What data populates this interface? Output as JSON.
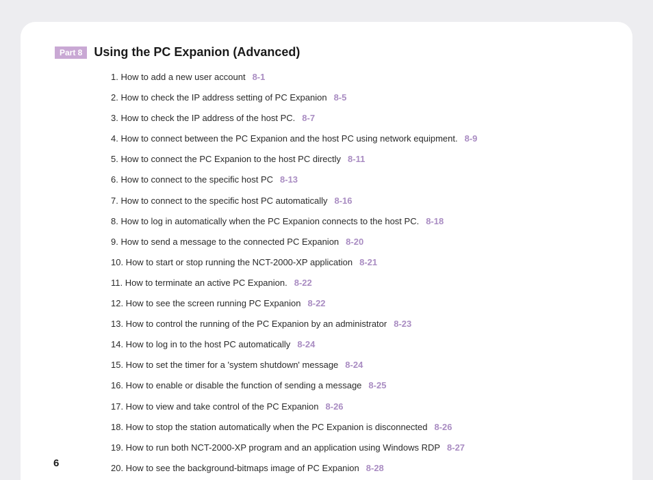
{
  "part_badge": "Part 8",
  "section_title": "Using the PC Expanion (Advanced)",
  "page_number": "6",
  "colors": {
    "page_bg": "#ffffff",
    "body_bg": "#ededf0",
    "badge_bg": "#c9a8d4",
    "badge_text": "#ffffff",
    "title_text": "#1a1a1a",
    "item_text": "#2a2a2a",
    "ref_text": "#a98cc2"
  },
  "toc": [
    {
      "n": "1",
      "text": "How to add a new user account",
      "ref": "8-1"
    },
    {
      "n": "2",
      "text": "How to check the IP address setting of PC Expanion",
      "ref": "8-5"
    },
    {
      "n": "3",
      "text": "How to check the IP address of the host PC.",
      "ref": "8-7"
    },
    {
      "n": "4",
      "text": "How to connect between the PC Expanion and the host PC using network equipment.",
      "ref": "8-9"
    },
    {
      "n": "5",
      "text": "How to connect the PC Expanion to the host PC directly",
      "ref": "8-11"
    },
    {
      "n": "6",
      "text": "How to connect to the specific host PC",
      "ref": "8-13"
    },
    {
      "n": "7",
      "text": "How to connect to the specific host PC automatically",
      "ref": "8-16"
    },
    {
      "n": "8",
      "text": "How to log in automatically when the PC Expanion connects to the host PC.",
      "ref": "8-18"
    },
    {
      "n": "9",
      "text": "How to send a message to the connected PC Expanion",
      "ref": "8-20"
    },
    {
      "n": "10",
      "text": "How to start or stop running the NCT-2000-XP application",
      "ref": "8-21"
    },
    {
      "n": "11",
      "text": "How to terminate an active PC Expanion.",
      "ref": "8-22"
    },
    {
      "n": "12",
      "text": "How to see the screen running PC Expanion",
      "ref": "8-22"
    },
    {
      "n": "13",
      "text": "How to control the running of the PC Expanion by an administrator",
      "ref": "8-23"
    },
    {
      "n": "14",
      "text": "How to log in to the host PC automatically",
      "ref": "8-24"
    },
    {
      "n": "15",
      "text": "How to set the timer for a 'system shutdown' message",
      "ref": "8-24"
    },
    {
      "n": "16",
      "text": "How to enable or disable the function of sending a message",
      "ref": "8-25"
    },
    {
      "n": "17",
      "text": "How to view and take control of the PC Expanion",
      "ref": "8-26"
    },
    {
      "n": "18",
      "text": "How to stop the station automatically when the PC Expanion is disconnected",
      "ref": "8-26"
    },
    {
      "n": "19",
      "text": "How to run both NCT-2000-XP program and an application using Windows RDP",
      "ref": "8-27"
    },
    {
      "n": "20",
      "text": "How to see the background-bitmaps image of PC Expanion",
      "ref": "8-28"
    }
  ]
}
